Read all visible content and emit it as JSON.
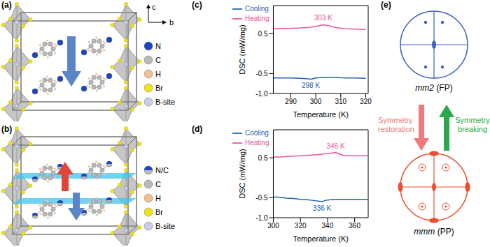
{
  "chart_data": [
    {
      "type": "line",
      "title": "(c)",
      "xlabel": "Temperature (K)",
      "ylabel": "DSC (mW/mg)",
      "x": [
        283,
        286,
        290,
        294,
        296,
        298,
        300,
        303,
        305,
        308,
        312,
        316,
        320
      ],
      "series": [
        {
          "name": "Heating",
          "color": "#e8559a",
          "values": [
            0.62,
            0.63,
            0.63,
            0.64,
            0.65,
            0.66,
            0.68,
            0.72,
            0.7,
            0.65,
            0.62,
            0.61,
            0.6
          ]
        },
        {
          "name": "Cooling",
          "color": "#1f63b0",
          "values": [
            -0.61,
            -0.61,
            -0.61,
            -0.62,
            -0.63,
            -0.64,
            -0.61,
            -0.6,
            -0.6,
            -0.6,
            -0.61,
            -0.61,
            -0.62
          ]
        }
      ],
      "xlim": [
        283,
        321
      ],
      "xticks": [
        290,
        300,
        310,
        320
      ],
      "ylim": [
        -1.0,
        1.2
      ],
      "yticks": [
        {
          "value": -1,
          "label": "-1.0"
        },
        -0.5,
        0.5
      ],
      "legend": "upper left",
      "annotations": [
        {
          "text": "303 K",
          "x": 303,
          "y": 0.72,
          "color": "#e8559a"
        },
        {
          "text": "298 K",
          "x": 298,
          "y": -0.64,
          "color": "#1f63b0"
        }
      ]
    },
    {
      "type": "line",
      "title": "(d)",
      "xlabel": "Temperature (K)",
      "ylabel": "DSC (mW/mg)",
      "x": [
        300,
        305,
        310,
        315,
        320,
        325,
        330,
        334,
        336,
        338,
        342,
        346,
        349,
        352,
        356,
        360,
        365,
        370
      ],
      "series": [
        {
          "name": "Heating",
          "color": "#e8559a",
          "values": [
            0.52,
            0.52,
            0.53,
            0.54,
            0.55,
            0.56,
            0.57,
            0.58,
            0.59,
            0.6,
            0.61,
            0.63,
            0.59,
            0.56,
            0.55,
            0.55,
            0.55,
            0.55
          ]
        },
        {
          "name": "Cooling",
          "color": "#1f63b0",
          "values": [
            -0.48,
            -0.49,
            -0.51,
            -0.52,
            -0.54,
            -0.55,
            -0.57,
            -0.59,
            -0.6,
            -0.57,
            -0.55,
            -0.54,
            -0.54,
            -0.54,
            -0.54,
            -0.54,
            -0.54,
            -0.54
          ]
        }
      ],
      "xlim": [
        300,
        370
      ],
      "xticks": [
        300,
        320,
        340,
        360
      ],
      "ylim": [
        -1.0,
        1.2
      ],
      "yticks": [
        {
          "value": -1,
          "label": "-1.0"
        },
        -0.5,
        0.5
      ],
      "legend": "upper left",
      "annotations": [
        {
          "text": "346 K",
          "x": 346,
          "y": 0.63,
          "color": "#e8559a"
        },
        {
          "text": "336 K",
          "x": 336,
          "y": -0.6,
          "color": "#1f63b0"
        }
      ]
    }
  ],
  "structures": [
    {
      "title": "(a)",
      "axes": [
        "c",
        "b"
      ],
      "atoms": [
        {
          "label": "N",
          "color": "#1a46c4"
        },
        {
          "label": "C",
          "color": "#b9b9b9"
        },
        {
          "label": "H",
          "color": "#f0c090"
        },
        {
          "label": "Br",
          "color": "#f2e318"
        },
        {
          "label": "B-site",
          "color": "#c7cde6"
        }
      ]
    },
    {
      "title": "(b)",
      "atoms": [
        {
          "label": "N/C",
          "colors": [
            "#1a46c4",
            "#b9b9b9"
          ]
        },
        {
          "label": "C",
          "color": "#b9b9b9"
        },
        {
          "label": "H",
          "color": "#f0c090"
        },
        {
          "label": "Br",
          "color": "#f2e318"
        },
        {
          "label": "B-site",
          "color": "#c7cde6"
        }
      ]
    }
  ],
  "symmetry": {
    "title": "(e)",
    "top": {
      "group": "mm2",
      "phase": "(FP)",
      "color": "#3a5fc8"
    },
    "bottom": {
      "group": "mmm",
      "phase": "(PP)",
      "color": "#ec4d2f"
    },
    "restoration": {
      "text": "Symmetry restoration",
      "color": "#f07a7a"
    },
    "breaking": {
      "text": "Symmetry breaking",
      "color": "#2aa84a"
    }
  }
}
